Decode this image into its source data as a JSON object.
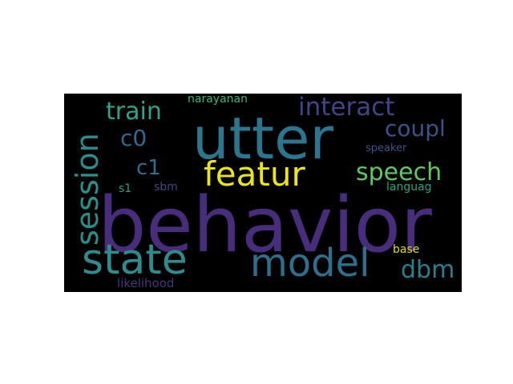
{
  "wordcloud": {
    "background": "#000000",
    "words": [
      {
        "key": "behavior",
        "text": "behavior",
        "color": "#472d7b"
      },
      {
        "key": "utter",
        "text": "utter",
        "color": "#2b768e"
      },
      {
        "key": "state",
        "text": "state",
        "color": "#2d8c8d"
      },
      {
        "key": "model",
        "text": "model",
        "color": "#2e6f8e"
      },
      {
        "key": "session",
        "text": "session",
        "color": "#2a8f8c"
      },
      {
        "key": "featur",
        "text": "featur",
        "color": "#e9e51a"
      },
      {
        "key": "interact",
        "text": "interact",
        "color": "#414487"
      },
      {
        "key": "speech",
        "text": "speech",
        "color": "#5ec962"
      },
      {
        "key": "train",
        "text": "train",
        "color": "#2ea38a"
      },
      {
        "key": "coupl",
        "text": "coupl",
        "color": "#3b528b"
      },
      {
        "key": "c0",
        "text": "c0",
        "color": "#31688e"
      },
      {
        "key": "c1",
        "text": "c1",
        "color": "#2d6f8e"
      },
      {
        "key": "dbm",
        "text": "dbm",
        "color": "#2a7f8e"
      },
      {
        "key": "narayanan",
        "text": "narayanan",
        "color": "#35b779"
      },
      {
        "key": "speaker",
        "text": "speaker",
        "color": "#3b528b"
      },
      {
        "key": "s1",
        "text": "s1",
        "color": "#2a9d8a"
      },
      {
        "key": "sbm",
        "text": "sbm",
        "color": "#3e4a89"
      },
      {
        "key": "languag",
        "text": "languag",
        "color": "#21a685"
      },
      {
        "key": "base",
        "text": "base",
        "color": "#e3d81a"
      },
      {
        "key": "likelihood",
        "text": "likelihood",
        "color": "#46337e"
      }
    ]
  }
}
